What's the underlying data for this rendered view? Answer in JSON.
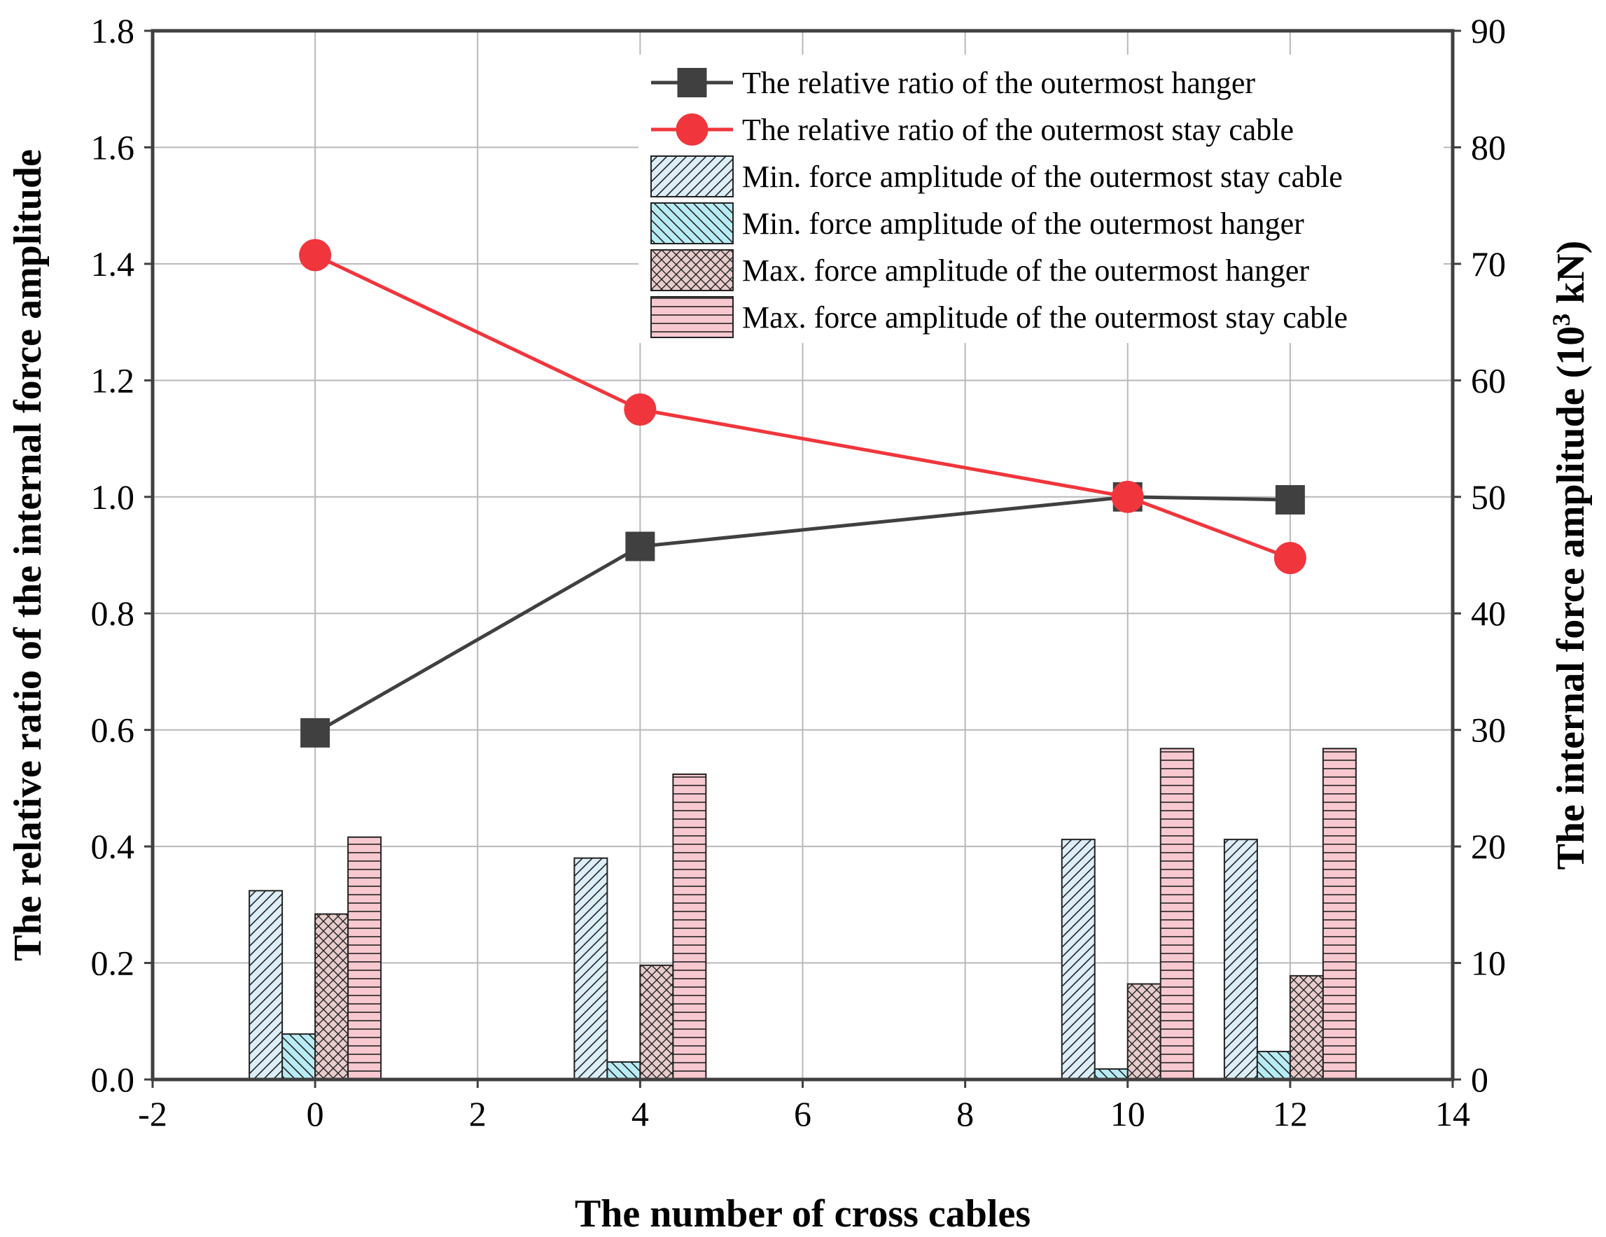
{
  "chart_data": {
    "type": "bar+line",
    "x_ticks": [
      "-2",
      "0",
      "2",
      "4",
      "6",
      "8",
      "10",
      "12",
      "14"
    ],
    "xlabel": "The number of cross cables",
    "ylabel_left": "The relative ratio of the internal force amplitude",
    "ylabel_right_prefix": "The internal force amplitude (10",
    "ylabel_right_sup": "3",
    "ylabel_right_suffix": " kN)",
    "xlim": [
      -2,
      14
    ],
    "ylim_left": [
      0.0,
      1.8
    ],
    "ylim_right": [
      0,
      90
    ],
    "left_ticks": [
      "0.0",
      "0.2",
      "0.4",
      "0.6",
      "0.8",
      "1.0",
      "1.2",
      "1.4",
      "1.6",
      "1.8"
    ],
    "right_ticks": [
      "0",
      "10",
      "20",
      "30",
      "40",
      "50",
      "60",
      "70",
      "80",
      "90"
    ],
    "grid": true,
    "legend_position": "top-right",
    "x": [
      0,
      4,
      10,
      12
    ],
    "lines": [
      {
        "name": "The relative ratio of the outermost hanger",
        "color": "#404040",
        "marker": "square",
        "values": [
          0.595,
          0.915,
          1.0,
          0.995
        ]
      },
      {
        "name": "The relative ratio of the outermost stay cable",
        "color": "#f0363c",
        "marker": "circle",
        "values": [
          1.415,
          1.15,
          1.0,
          0.895
        ]
      }
    ],
    "bars": [
      {
        "name": "Min. force amplitude of the outermost stay cable",
        "fill": "#dceef8",
        "pattern": "diagonal",
        "values": [
          16.2,
          19.0,
          20.6,
          20.6
        ]
      },
      {
        "name": "Min. force amplitude of the outermost hanger",
        "fill": "#b8ecf4",
        "pattern": "back-diagonal",
        "values": [
          3.9,
          1.5,
          0.9,
          2.4
        ]
      },
      {
        "name": "Max. force amplitude of the outermost hanger",
        "fill": "#e8cccc",
        "pattern": "crosshatch",
        "values": [
          14.2,
          9.8,
          8.2,
          8.9
        ]
      },
      {
        "name": "Max. force amplitude of the outermost stay cable",
        "fill": "#f8c8d0",
        "pattern": "horizontal",
        "values": [
          20.8,
          26.2,
          28.4,
          28.4
        ]
      }
    ]
  }
}
